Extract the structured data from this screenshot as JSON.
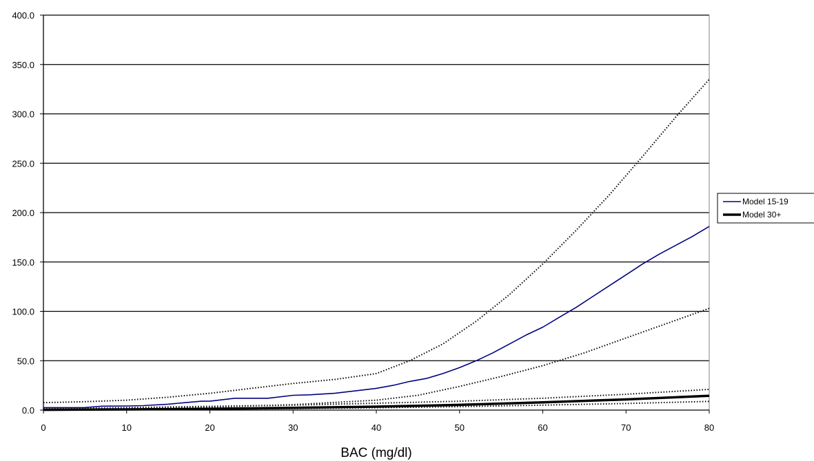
{
  "chart_data": {
    "type": "line",
    "title": "",
    "xlabel": "BAC (mg/dl)",
    "ylabel": "",
    "xlim": [
      0,
      80
    ],
    "ylim": [
      0,
      400
    ],
    "x_ticks": [
      0,
      10,
      20,
      30,
      40,
      50,
      60,
      70,
      80
    ],
    "x_tick_labels": [
      "0",
      "10",
      "20",
      "30",
      "40",
      "50",
      "60",
      "70",
      "80"
    ],
    "y_ticks": [
      0,
      50,
      100,
      150,
      200,
      250,
      300,
      350,
      400
    ],
    "y_tick_labels": [
      "0.0",
      "50.0",
      "100.0",
      "150.0",
      "200.0",
      "250.0",
      "300.0",
      "350.0",
      "400.0"
    ],
    "grid": "horizontal",
    "legend_position": "right",
    "series": [
      {
        "name": "Model 15-19",
        "color": "#000080",
        "style": "solid",
        "legend": true,
        "x": [
          0,
          5,
          7,
          10,
          12,
          15,
          17,
          19,
          20,
          23,
          27,
          30,
          32,
          35,
          38,
          40,
          42,
          44,
          46,
          48,
          50,
          52,
          54,
          56,
          58,
          60,
          62,
          64,
          66,
          68,
          70,
          72,
          74,
          76,
          78,
          80
        ],
        "values": [
          2.5,
          2.6,
          4,
          4.2,
          4.5,
          6,
          7.5,
          9,
          9,
          12,
          12,
          15,
          15.5,
          17,
          20,
          22,
          25,
          29,
          32,
          37,
          43,
          50,
          58,
          67,
          76,
          84,
          94,
          104,
          115,
          126,
          137,
          148,
          158,
          167,
          176,
          186
        ]
      },
      {
        "name": "Model 30+",
        "color": "#000000",
        "style": "bold",
        "legend": true,
        "x": [
          0,
          10,
          20,
          30,
          40,
          50,
          60,
          70,
          80
        ],
        "values": [
          0.3,
          0.7,
          1.3,
          2.2,
          3.5,
          5.3,
          7.8,
          10.8,
          14.5
        ]
      },
      {
        "color": "#000000",
        "style": "dotted",
        "legend": false,
        "x": [
          0,
          5,
          10,
          15,
          20,
          25,
          30,
          35,
          40,
          44,
          48,
          52,
          56,
          60,
          64,
          68,
          72,
          76,
          80
        ],
        "values": [
          7.5,
          8.5,
          10,
          13,
          17,
          22,
          27,
          31,
          37,
          50,
          67,
          90,
          117,
          148,
          182,
          218,
          257,
          297,
          335
        ]
      },
      {
        "color": "#000000",
        "style": "dotted",
        "legend": false,
        "x": [
          0,
          10,
          20,
          30,
          40,
          45,
          50,
          55,
          60,
          65,
          70,
          75,
          80
        ],
        "values": [
          0.6,
          1.5,
          3,
          5.5,
          10,
          15,
          24,
          34,
          45,
          58,
          73,
          88,
          103
        ]
      },
      {
        "color": "#000000",
        "style": "dotted",
        "legend": false,
        "x": [
          0,
          10,
          20,
          30,
          40,
          50,
          60,
          70,
          80
        ],
        "values": [
          1.2,
          2.5,
          3.8,
          5,
          7,
          9,
          12,
          16,
          21
        ]
      },
      {
        "color": "#000000",
        "style": "dotted",
        "legend": false,
        "x": [
          0,
          10,
          20,
          30,
          40,
          50,
          60,
          70,
          80
        ],
        "values": [
          0.2,
          0.5,
          0.9,
          1.5,
          2.4,
          3.5,
          5,
          6.7,
          8.8
        ]
      }
    ]
  }
}
